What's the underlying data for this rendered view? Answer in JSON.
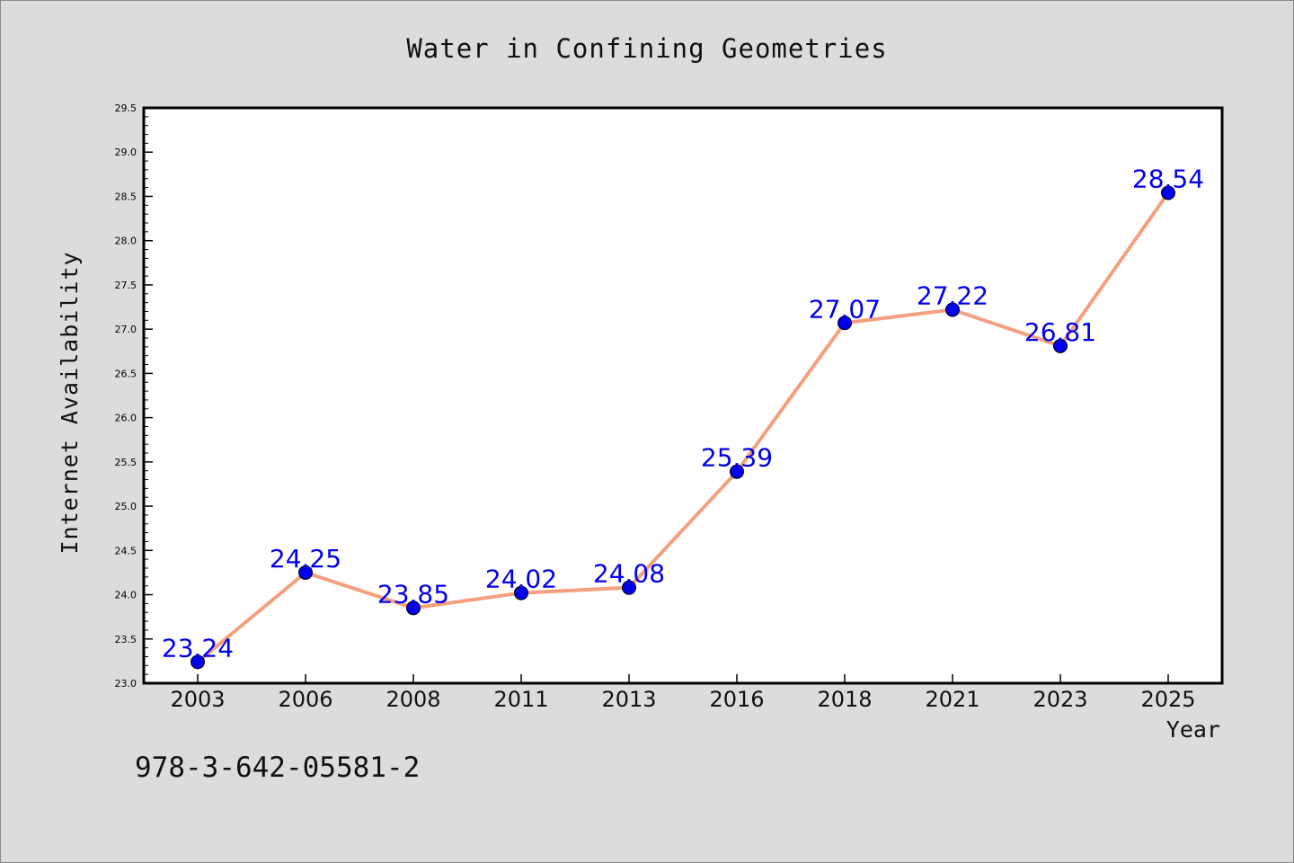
{
  "chart_data": {
    "type": "line",
    "title": "Water in Confining Geometries",
    "xlabel": "Year",
    "ylabel": "Internet Availability",
    "categories": [
      "2003",
      "2006",
      "2008",
      "2011",
      "2013",
      "2016",
      "2018",
      "2021",
      "2023",
      "2025"
    ],
    "series": [
      {
        "values": [
          23.24,
          24.25,
          23.85,
          24.02,
          24.08,
          25.39,
          27.07,
          27.22,
          26.81,
          28.54
        ],
        "line_color": "#f4a07e",
        "marker_color": "#0000ee"
      }
    ],
    "data_labels": [
      "23.24",
      "24.25",
      "23.85",
      "24.02",
      "24.08",
      "25.39",
      "27.07",
      "27.22",
      "26.81",
      "28.54"
    ],
    "ylim": [
      23.0,
      29.5
    ],
    "y_ticks": [
      "23.0",
      "23.5",
      "24.0",
      "24.5",
      "25.0",
      "25.5",
      "26.0",
      "26.5",
      "27.0",
      "27.5",
      "28.0",
      "28.5",
      "29.0",
      "29.5"
    ],
    "grid": false,
    "annotation": "978-3-642-05581-2",
    "label_color": "#0000ee",
    "background_color": "#dcdcdc",
    "plot_background_color": "#ffffff"
  }
}
